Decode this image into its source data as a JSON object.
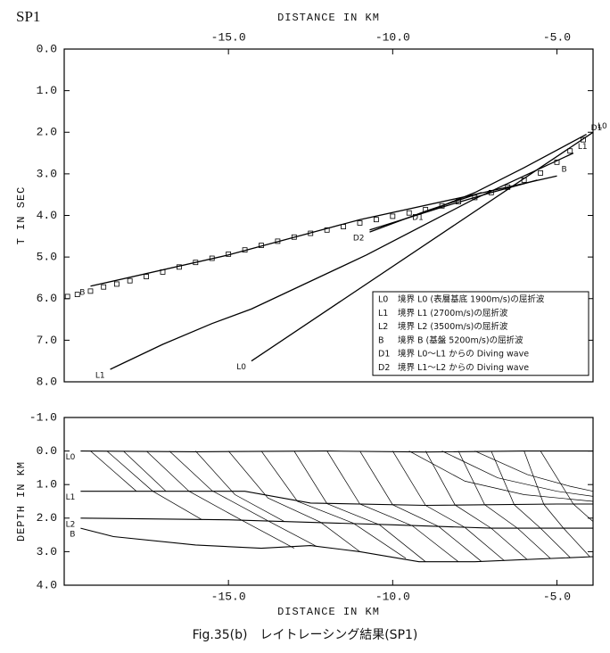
{
  "caption": "Fig.35(b)　レイトレーシング結果(SP1)",
  "chart_data": [
    {
      "type": "line",
      "title": "SP1",
      "xlabel": "DISTANCE IN KM",
      "ylabel": "T IN SEC",
      "color": "#000000",
      "xaxis_position": "top",
      "legend": true,
      "xlim": [
        -20,
        -3.9
      ],
      "ylim": [
        0,
        8
      ],
      "xticks": [
        {
          "value": -15,
          "label": "-15.0"
        },
        {
          "value": -10,
          "label": "-10.0"
        },
        {
          "value": -5,
          "label": "-5.0"
        }
      ],
      "yticks": [
        {
          "value": 0,
          "label": "0.0"
        },
        {
          "value": 1,
          "label": "1.0"
        },
        {
          "value": 2,
          "label": "2.0"
        },
        {
          "value": 3,
          "label": "3.0"
        },
        {
          "value": 4,
          "label": "4.0"
        },
        {
          "value": 5,
          "label": "5.0"
        },
        {
          "value": 6,
          "label": "6.0"
        },
        {
          "value": 7,
          "label": "7.0"
        },
        {
          "value": 8,
          "label": "8.0"
        }
      ],
      "series": [
        {
          "name": "L0",
          "description": "境界 L0 (表層基底 1900m/s)の屈折波",
          "label_ends": [
            "start",
            "end"
          ],
          "x": [
            -14.3,
            -3.9
          ],
          "y": [
            7.5,
            2.0
          ]
        },
        {
          "name": "L1",
          "description": "境界 L1 (2700m/s)の屈折波",
          "label_ends": [
            "start",
            "end"
          ],
          "x": [
            -18.6,
            -17.0,
            -15.5,
            -14.3,
            -10.8,
            -7.5,
            -4.5
          ],
          "y": [
            7.7,
            7.1,
            6.6,
            6.25,
            4.95,
            3.6,
            2.5
          ]
        },
        {
          "name": "L2",
          "description": "境界 L2 (3500m/s)の屈折波",
          "x": [
            -10.7,
            -8.5,
            -7.0,
            -5.6
          ],
          "y": [
            4.35,
            3.8,
            3.45,
            3.15
          ]
        },
        {
          "name": "B",
          "description": "境界 B (基盤 5200m/s)の屈折波",
          "label_ends": [
            "start",
            "end"
          ],
          "x": [
            -19.2,
            -15.0,
            -11.0,
            -7.8,
            -5.0
          ],
          "y": [
            5.7,
            4.95,
            4.1,
            3.55,
            3.05
          ]
        },
        {
          "name": "D1",
          "description": "境界 L0～L1 からの Diving wave",
          "label_ends": [
            "start",
            "end"
          ],
          "x": [
            -8.9,
            -7.5,
            -6.0,
            -4.1
          ],
          "y": [
            3.9,
            3.45,
            2.85,
            2.05
          ]
        },
        {
          "name": "D2",
          "description": "境界 L1～L2 からの Diving wave",
          "label_ends": [
            "start"
          ],
          "x": [
            -10.7,
            -9.0,
            -7.3
          ],
          "y": [
            4.4,
            3.9,
            3.45
          ]
        }
      ],
      "observed": {
        "x": [
          -19.9,
          -19.6,
          -19.2,
          -18.8,
          -18.4,
          -18.0,
          -17.5,
          -17.0,
          -16.5,
          -16.0,
          -15.5,
          -15.0,
          -14.5,
          -14.0,
          -13.5,
          -13.0,
          -12.5,
          -12.0,
          -11.5,
          -11.0,
          -10.5,
          -10.0,
          -9.5,
          -9.0,
          -8.5,
          -8.0,
          -7.5,
          -7.0,
          -6.5,
          -6.0,
          -5.5,
          -5.0,
          -4.6,
          -4.2
        ],
        "y": [
          5.95,
          5.9,
          5.82,
          5.72,
          5.65,
          5.57,
          5.47,
          5.36,
          5.24,
          5.13,
          5.03,
          4.93,
          4.83,
          4.72,
          4.62,
          4.52,
          4.43,
          4.35,
          4.27,
          4.18,
          4.1,
          4.02,
          3.94,
          3.86,
          3.77,
          3.67,
          3.57,
          3.45,
          3.32,
          3.15,
          2.98,
          2.72,
          2.45,
          2.18
        ]
      }
    },
    {
      "type": "line",
      "xlabel": "DISTANCE IN KM",
      "ylabel": "DEPTH IN KM",
      "color": "#000000",
      "xaxis_position": "bottom",
      "xlim": [
        -20,
        -3.9
      ],
      "ylim": [
        -1,
        4
      ],
      "xticks": [
        {
          "value": -15,
          "label": "-15.0"
        },
        {
          "value": -10,
          "label": "-10.0"
        },
        {
          "value": -5,
          "label": "-5.0"
        }
      ],
      "yticks": [
        {
          "value": -1,
          "label": "-1.0"
        },
        {
          "value": 0,
          "label": "0.0"
        },
        {
          "value": 1,
          "label": "1.0"
        },
        {
          "value": 2,
          "label": "2.0"
        },
        {
          "value": 3,
          "label": "3.0"
        },
        {
          "value": 4,
          "label": "4.0"
        }
      ],
      "series": [
        {
          "name": "L0",
          "label_ends": [
            "start"
          ],
          "x": [
            -19.5,
            -16.0,
            -12.0,
            -9.0,
            -6.0,
            -3.9
          ],
          "y": [
            0.0,
            0.02,
            0.0,
            0.03,
            0.0,
            0.0
          ]
        },
        {
          "name": "L1",
          "label_ends": [
            "start"
          ],
          "x": [
            -19.5,
            -16.0,
            -14.5,
            -12.5,
            -9.0,
            -5.0,
            -3.9
          ],
          "y": [
            1.2,
            1.2,
            1.2,
            1.55,
            1.62,
            1.58,
            1.58
          ]
        },
        {
          "name": "L2",
          "label_ends": [
            "start"
          ],
          "x": [
            -19.5,
            -15.0,
            -10.0,
            -7.0,
            -3.9
          ],
          "y": [
            2.0,
            2.05,
            2.2,
            2.3,
            2.3
          ]
        },
        {
          "name": "B",
          "label_ends": [
            "start"
          ],
          "x": [
            -19.5,
            -18.5,
            -16.0,
            -14.0,
            -12.5,
            -11.0,
            -9.2,
            -7.5,
            -3.9
          ],
          "y": [
            2.3,
            2.55,
            2.8,
            2.9,
            2.82,
            3.0,
            3.3,
            3.3,
            3.15
          ]
        }
      ],
      "rays": [
        {
          "x": [
            -19.2,
            -17.8
          ],
          "y": [
            0,
            1.2
          ]
        },
        {
          "x": [
            -18.7,
            -17.3,
            -15.8
          ],
          "y": [
            0,
            1.2,
            2.05
          ]
        },
        {
          "x": [
            -18.2,
            -16.9
          ],
          "y": [
            0,
            1.2
          ]
        },
        {
          "x": [
            -17.5,
            -16.2,
            -14.6,
            -13.0
          ],
          "y": [
            0,
            1.2,
            2.06,
            2.9
          ]
        },
        {
          "x": [
            -16.8,
            -15.5,
            -13.8,
            -12.3
          ],
          "y": [
            0,
            1.18,
            2.08,
            2.85
          ]
        },
        {
          "x": [
            -16.0,
            -14.8,
            -13.3
          ],
          "y": [
            0,
            1.3,
            2.1
          ]
        },
        {
          "x": [
            -15.0,
            -13.8,
            -12.2,
            -11.0
          ],
          "y": [
            0,
            1.4,
            2.12,
            3.0
          ]
        },
        {
          "x": [
            -14.0,
            -12.9,
            -11.2,
            -9.6
          ],
          "y": [
            0,
            1.5,
            2.15,
            3.2
          ]
        },
        {
          "x": [
            -13.0,
            -12.0,
            -10.4,
            -9.0
          ],
          "y": [
            0,
            1.57,
            2.2,
            3.3
          ]
        },
        {
          "x": [
            -12.0,
            -11.0,
            -9.4,
            -8.0
          ],
          "y": [
            0,
            1.58,
            2.23,
            3.3
          ]
        },
        {
          "x": [
            -11.0,
            -10.0,
            -8.6,
            -7.3
          ],
          "y": [
            0,
            1.6,
            2.25,
            3.29
          ]
        },
        {
          "x": [
            -10.0,
            -9.0,
            -7.8,
            -6.6
          ],
          "y": [
            0,
            1.62,
            2.28,
            3.27
          ]
        },
        {
          "x": [
            -9.0,
            -8.1,
            -7.0,
            -5.9
          ],
          "y": [
            0,
            1.61,
            2.3,
            3.24
          ]
        },
        {
          "x": [
            -8.0,
            -7.2,
            -6.2,
            -5.2
          ],
          "y": [
            0,
            1.6,
            2.3,
            3.2
          ]
        },
        {
          "x": [
            -7.0,
            -6.3,
            -5.5,
            -4.6
          ],
          "y": [
            0,
            1.6,
            2.3,
            3.17
          ]
        },
        {
          "x": [
            -6.0,
            -5.4,
            -4.8,
            -4.0
          ],
          "y": [
            0,
            1.59,
            2.3,
            3.15
          ]
        },
        {
          "x": [
            -5.5,
            -4.5,
            -3.9
          ],
          "y": [
            0,
            1.58,
            2.1
          ]
        },
        {
          "x": [
            -9.5,
            -7.8,
            -6.0,
            -3.9
          ],
          "y": [
            0,
            0.9,
            1.3,
            1.5
          ]
        },
        {
          "x": [
            -8.5,
            -6.8,
            -5.0,
            -3.9
          ],
          "y": [
            0,
            0.8,
            1.2,
            1.35
          ]
        },
        {
          "x": [
            -7.5,
            -5.9,
            -4.6,
            -3.9
          ],
          "y": [
            0,
            0.7,
            1.05,
            1.2
          ]
        }
      ]
    }
  ]
}
